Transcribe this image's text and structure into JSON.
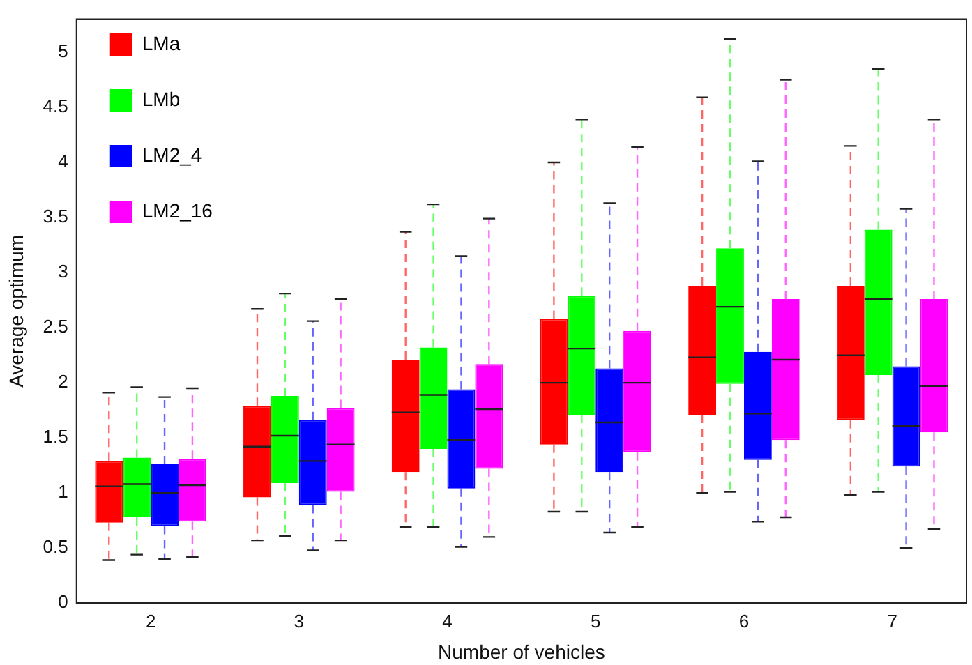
{
  "chart_data": {
    "type": "box",
    "xlabel": "Number of vehicles",
    "ylabel": "Average optimum",
    "categories": [
      "2",
      "3",
      "4",
      "5",
      "6",
      "7"
    ],
    "ylim": [
      0,
      5.3
    ],
    "yticks": [
      0,
      0.5,
      1,
      1.5,
      2,
      2.5,
      3,
      3.5,
      4,
      4.5,
      5
    ],
    "grid": false,
    "legend": "top left",
    "line_style": "dashed",
    "series": [
      {
        "name": "LMa",
        "color": "#ff0000",
        "boxes": [
          {
            "low": 0.39,
            "q1": 0.73,
            "median": 1.06,
            "q3": 1.29,
            "high": 1.91
          },
          {
            "low": 0.57,
            "q1": 0.96,
            "median": 1.42,
            "q3": 1.79,
            "high": 2.67
          },
          {
            "low": 0.69,
            "q1": 1.19,
            "median": 1.73,
            "q3": 2.21,
            "high": 3.37
          },
          {
            "low": 0.83,
            "q1": 1.44,
            "median": 2.0,
            "q3": 2.58,
            "high": 4.0
          },
          {
            "low": 1.0,
            "q1": 1.71,
            "median": 2.23,
            "q3": 2.88,
            "high": 4.59
          },
          {
            "low": 0.98,
            "q1": 1.66,
            "median": 2.25,
            "q3": 2.88,
            "high": 4.15
          }
        ]
      },
      {
        "name": "LMb",
        "color": "#00ff00",
        "boxes": [
          {
            "low": 0.44,
            "q1": 0.78,
            "median": 1.08,
            "q3": 1.32,
            "high": 1.96
          },
          {
            "low": 0.61,
            "q1": 1.09,
            "median": 1.52,
            "q3": 1.88,
            "high": 2.81
          },
          {
            "low": 0.69,
            "q1": 1.4,
            "median": 1.89,
            "q3": 2.32,
            "high": 3.62
          },
          {
            "low": 0.83,
            "q1": 1.71,
            "median": 2.31,
            "q3": 2.79,
            "high": 4.39
          },
          {
            "low": 1.01,
            "q1": 1.99,
            "median": 2.69,
            "q3": 3.22,
            "high": 5.12
          },
          {
            "low": 1.01,
            "q1": 2.07,
            "median": 2.76,
            "q3": 3.39,
            "high": 4.85
          }
        ]
      },
      {
        "name": "LM2_4",
        "color": "#0000ff",
        "boxes": [
          {
            "low": 0.4,
            "q1": 0.7,
            "median": 1.0,
            "q3": 1.26,
            "high": 1.87
          },
          {
            "low": 0.48,
            "q1": 0.89,
            "median": 1.29,
            "q3": 1.66,
            "high": 2.56
          },
          {
            "low": 0.51,
            "q1": 1.04,
            "median": 1.48,
            "q3": 1.94,
            "high": 3.15
          },
          {
            "low": 0.64,
            "q1": 1.19,
            "median": 1.64,
            "q3": 2.13,
            "high": 3.63
          },
          {
            "low": 0.74,
            "q1": 1.3,
            "median": 1.72,
            "q3": 2.28,
            "high": 4.01
          },
          {
            "low": 0.5,
            "q1": 1.24,
            "median": 1.61,
            "q3": 2.15,
            "high": 3.58
          }
        ]
      },
      {
        "name": "LM2_16",
        "color": "#ff00ff",
        "boxes": [
          {
            "low": 0.42,
            "q1": 0.74,
            "median": 1.07,
            "q3": 1.31,
            "high": 1.95
          },
          {
            "low": 0.57,
            "q1": 1.01,
            "median": 1.44,
            "q3": 1.77,
            "high": 2.76
          },
          {
            "low": 0.6,
            "q1": 1.22,
            "median": 1.76,
            "q3": 2.17,
            "high": 3.49
          },
          {
            "low": 0.69,
            "q1": 1.37,
            "median": 2.0,
            "q3": 2.47,
            "high": 4.14
          },
          {
            "low": 0.78,
            "q1": 1.48,
            "median": 2.21,
            "q3": 2.76,
            "high": 4.75
          },
          {
            "low": 0.67,
            "q1": 1.55,
            "median": 1.97,
            "q3": 2.76,
            "high": 4.39
          }
        ]
      }
    ]
  }
}
